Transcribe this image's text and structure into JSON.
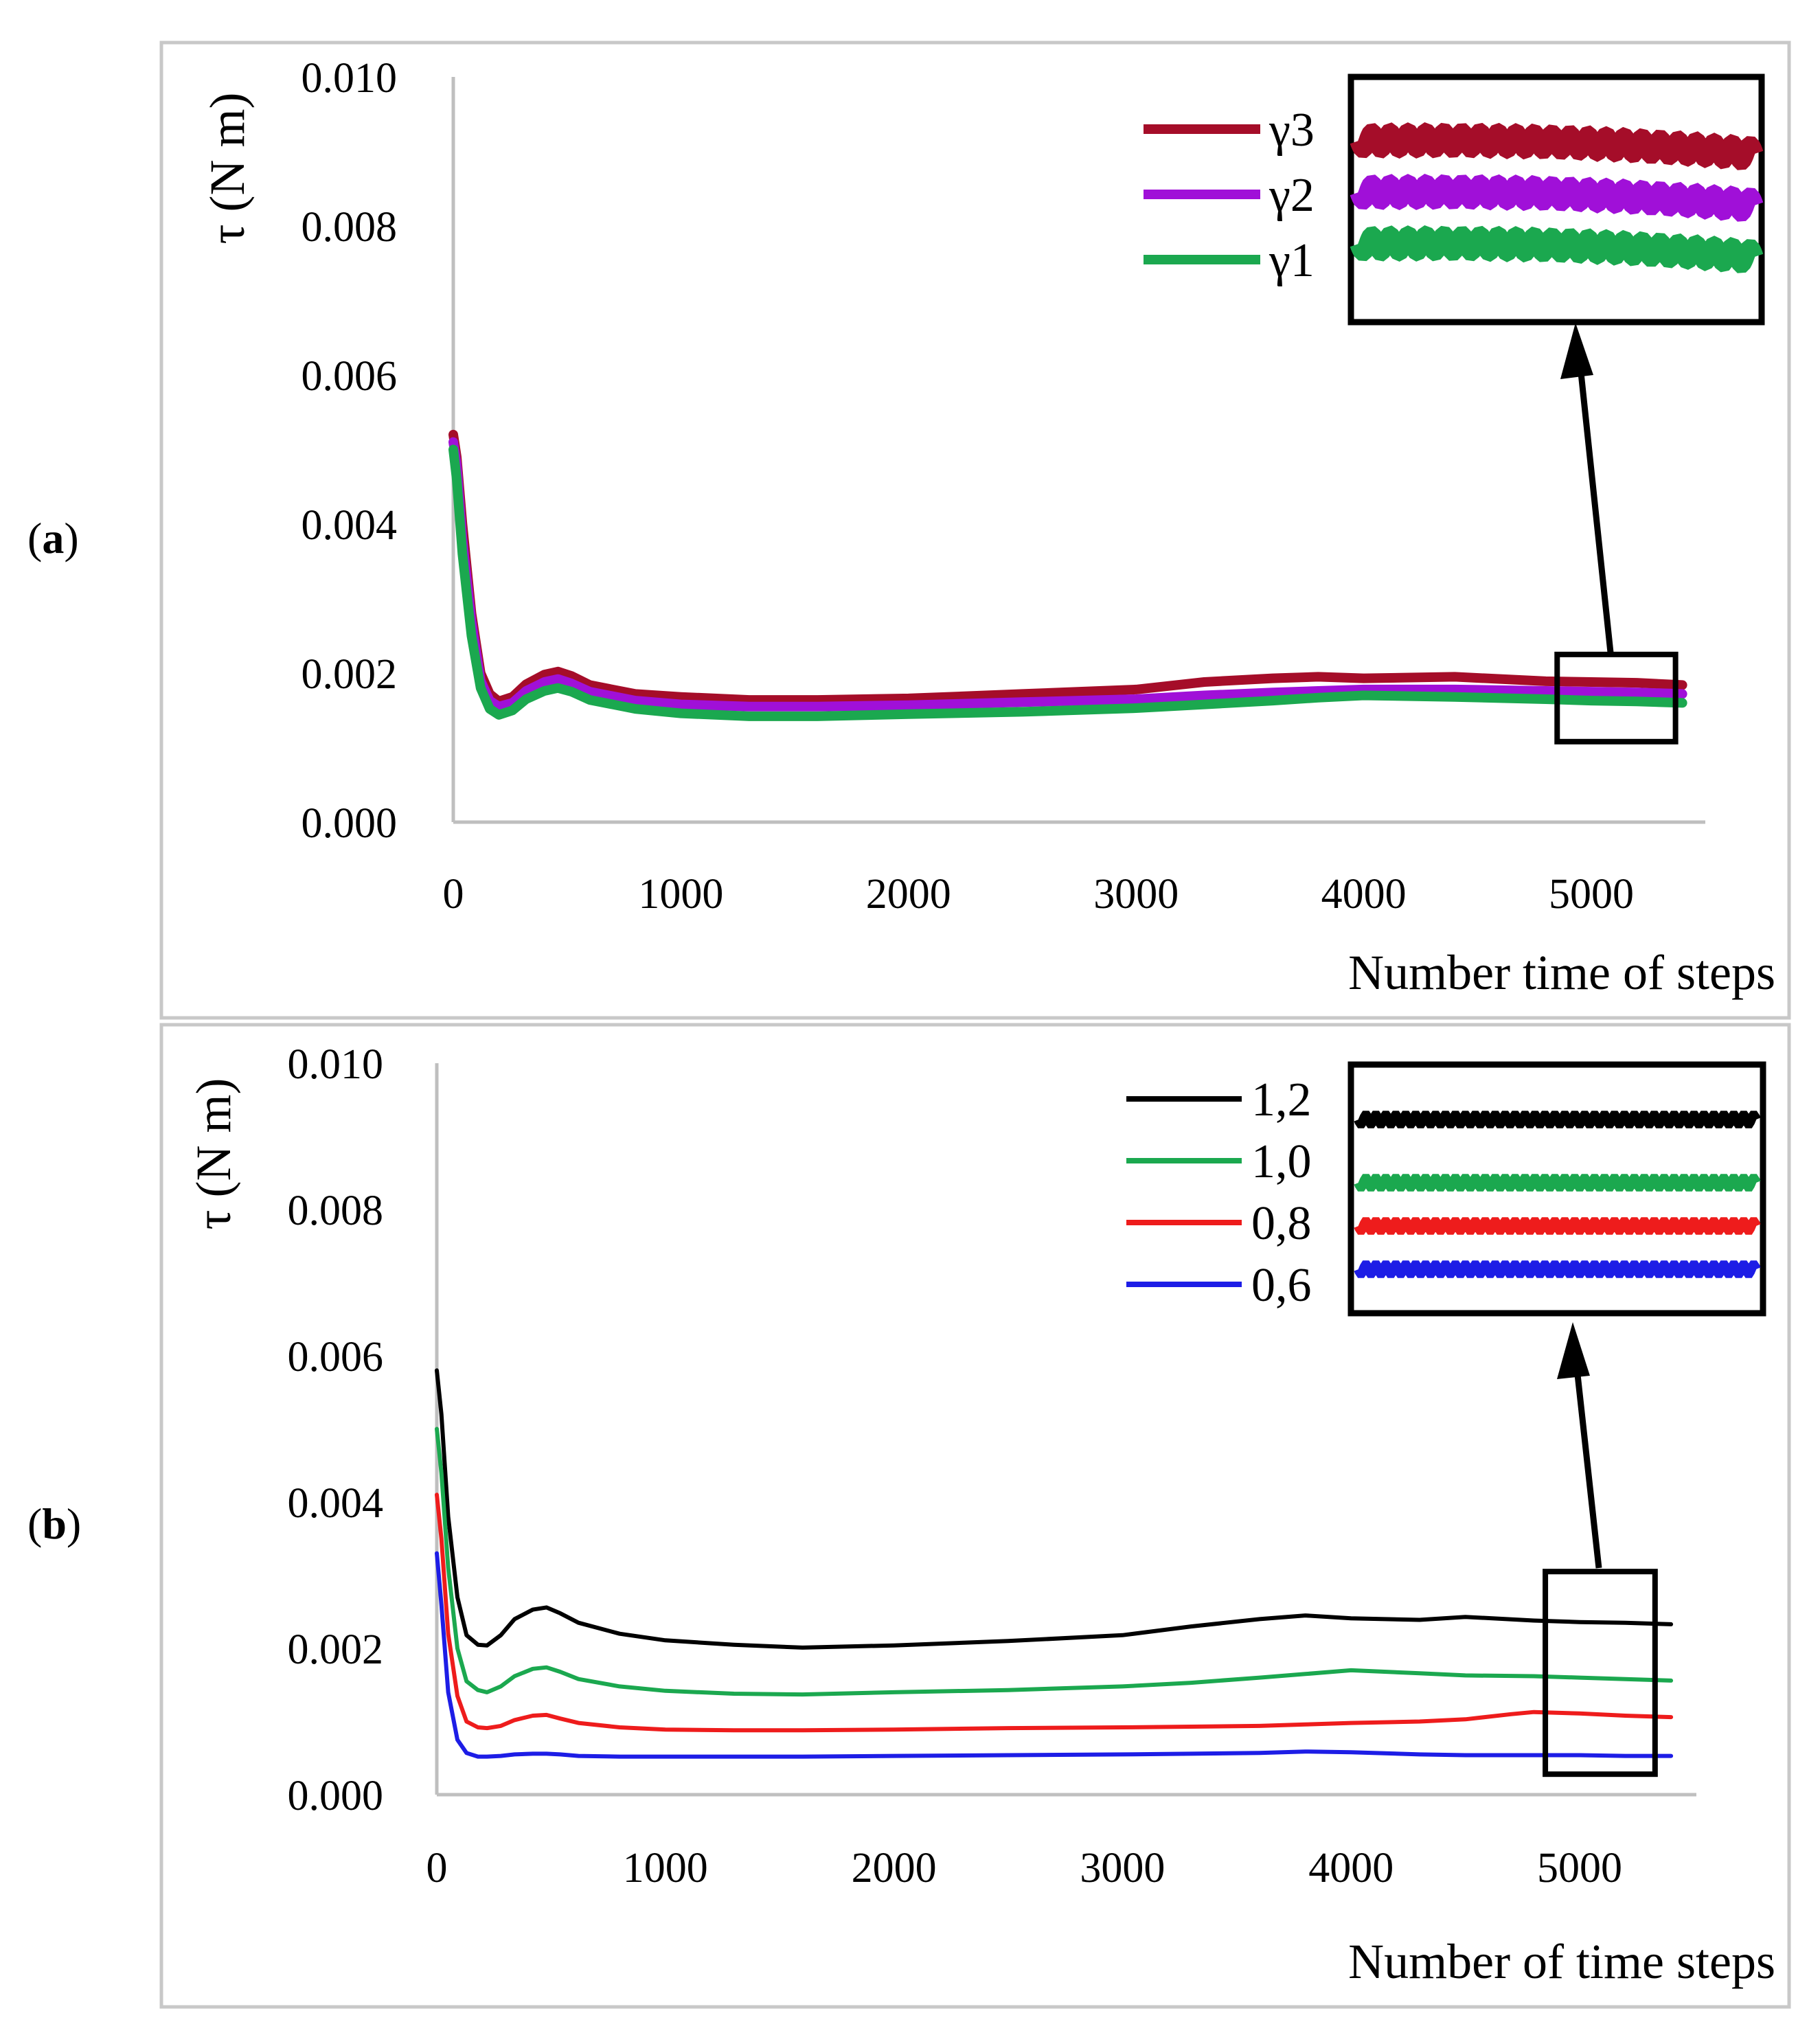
{
  "chart_data": [
    {
      "type": "line",
      "panel_label": "(a)",
      "panel_letter": "a",
      "xlabel": "Number time of steps",
      "ylabel": "τ (N m)",
      "xlim": [
        0,
        5500
      ],
      "ylim": [
        0,
        0.01
      ],
      "xticks": [
        "0",
        "1000",
        "2000",
        "3000",
        "4000",
        "5000"
      ],
      "yticks": [
        "0.000",
        "0.002",
        "0.004",
        "0.006",
        "0.008",
        "0.010"
      ],
      "grid": false,
      "legend_position": "top-right",
      "zoom_box": {
        "x": [
          4850,
          5370
        ],
        "y": [
          0.00108,
          0.00225
        ]
      },
      "series": [
        {
          "name": "γ3",
          "color": "#A50D29",
          "x": [
            0,
            15,
            40,
            80,
            120,
            160,
            200,
            260,
            320,
            400,
            460,
            520,
            600,
            800,
            1000,
            1300,
            1600,
            2000,
            2500,
            3000,
            3300,
            3600,
            3800,
            4000,
            4400,
            4800,
            5000,
            5200,
            5400
          ],
          "y": [
            0.0052,
            0.0049,
            0.004,
            0.0028,
            0.002,
            0.00172,
            0.00162,
            0.00168,
            0.00185,
            0.00198,
            0.00202,
            0.00196,
            0.00184,
            0.00172,
            0.00168,
            0.00164,
            0.00164,
            0.00166,
            0.00172,
            0.00178,
            0.00188,
            0.00193,
            0.00195,
            0.00193,
            0.00195,
            0.00189,
            0.00188,
            0.00187,
            0.00184
          ]
        },
        {
          "name": "γ2",
          "color": "#A010D8",
          "x": [
            0,
            15,
            40,
            80,
            120,
            160,
            200,
            260,
            320,
            400,
            460,
            520,
            600,
            800,
            1000,
            1300,
            1600,
            2000,
            2500,
            3000,
            3300,
            3600,
            3800,
            4000,
            4400,
            4800,
            5000,
            5200,
            5400
          ],
          "y": [
            0.0051,
            0.0048,
            0.0038,
            0.0027,
            0.0019,
            0.00163,
            0.00155,
            0.0016,
            0.00176,
            0.00188,
            0.00192,
            0.00186,
            0.00175,
            0.00163,
            0.00158,
            0.00155,
            0.00155,
            0.00157,
            0.00161,
            0.00165,
            0.0017,
            0.00174,
            0.00176,
            0.00178,
            0.00178,
            0.00176,
            0.00175,
            0.00174,
            0.00172
          ]
        },
        {
          "name": "γ1",
          "color": "#1BA84F",
          "x": [
            0,
            15,
            40,
            80,
            120,
            160,
            200,
            260,
            320,
            400,
            460,
            520,
            600,
            800,
            1000,
            1300,
            1600,
            2000,
            2500,
            3000,
            3300,
            3600,
            3800,
            4000,
            4400,
            4800,
            5000,
            5200,
            5400
          ],
          "y": [
            0.005,
            0.0046,
            0.0036,
            0.0025,
            0.0018,
            0.00152,
            0.00144,
            0.0015,
            0.00165,
            0.00176,
            0.0018,
            0.00175,
            0.00164,
            0.00152,
            0.00146,
            0.00142,
            0.00142,
            0.00145,
            0.00148,
            0.00153,
            0.00158,
            0.00163,
            0.00167,
            0.0017,
            0.00168,
            0.00165,
            0.00163,
            0.00162,
            0.0016
          ]
        }
      ]
    },
    {
      "type": "line",
      "panel_label": "(b)",
      "panel_letter": "b",
      "xlabel": "Number of time steps",
      "ylabel": "τ (N m)",
      "xlim": [
        0,
        5500
      ],
      "ylim": [
        0,
        0.01
      ],
      "xticks": [
        "0",
        "1000",
        "2000",
        "3000",
        "4000",
        "5000"
      ],
      "yticks": [
        "0.000",
        "0.002",
        "0.004",
        "0.006",
        "0.008",
        "0.010"
      ],
      "grid": false,
      "legend_position": "top-right",
      "zoom_box": {
        "x": [
          4850,
          5330
        ],
        "y": [
          0.00028,
          0.00305
        ]
      },
      "series": [
        {
          "name": "1,2",
          "color": "#000000",
          "x": [
            0,
            20,
            50,
            90,
            130,
            180,
            220,
            280,
            340,
            420,
            480,
            540,
            620,
            800,
            1000,
            1300,
            1600,
            2000,
            2500,
            3000,
            3300,
            3600,
            3800,
            4000,
            4300,
            4500,
            4800,
            5000,
            5200,
            5400
          ],
          "y": [
            0.0058,
            0.0052,
            0.0038,
            0.0027,
            0.00218,
            0.00205,
            0.00204,
            0.00218,
            0.0024,
            0.00253,
            0.00256,
            0.00248,
            0.00235,
            0.0022,
            0.00211,
            0.00205,
            0.00201,
            0.00204,
            0.0021,
            0.00218,
            0.0023,
            0.0024,
            0.00245,
            0.00241,
            0.00239,
            0.00243,
            0.00238,
            0.00236,
            0.00235,
            0.00233
          ]
        },
        {
          "name": "1,0",
          "color": "#1BA84F",
          "x": [
            0,
            20,
            50,
            90,
            130,
            180,
            220,
            280,
            340,
            420,
            480,
            540,
            620,
            800,
            1000,
            1300,
            1600,
            2000,
            2500,
            3000,
            3300,
            3600,
            3800,
            4000,
            4300,
            4500,
            4800,
            5000,
            5200,
            5400
          ],
          "y": [
            0.005,
            0.0044,
            0.0031,
            0.002,
            0.00155,
            0.00143,
            0.0014,
            0.00148,
            0.00162,
            0.00172,
            0.00174,
            0.00168,
            0.00158,
            0.00148,
            0.00142,
            0.00138,
            0.00137,
            0.0014,
            0.00143,
            0.00148,
            0.00153,
            0.0016,
            0.00165,
            0.0017,
            0.00166,
            0.00163,
            0.00162,
            0.0016,
            0.00158,
            0.00156
          ]
        },
        {
          "name": "0,8",
          "color": "#EE1C1C",
          "x": [
            0,
            20,
            50,
            90,
            130,
            180,
            220,
            280,
            340,
            420,
            480,
            540,
            620,
            800,
            1000,
            1300,
            1600,
            2000,
            2500,
            3000,
            3300,
            3600,
            3800,
            4000,
            4300,
            4500,
            4700,
            4800,
            5000,
            5200,
            5400
          ],
          "y": [
            0.0041,
            0.0035,
            0.0022,
            0.00135,
            0.001,
            0.00092,
            0.00091,
            0.00094,
            0.00102,
            0.00108,
            0.00109,
            0.00104,
            0.00098,
            0.00092,
            0.00089,
            0.00088,
            0.00088,
            0.00089,
            0.00091,
            0.00092,
            0.00093,
            0.00094,
            0.00096,
            0.00098,
            0.001,
            0.00103,
            0.0011,
            0.00113,
            0.00111,
            0.00108,
            0.00106
          ]
        },
        {
          "name": "0,6",
          "color": "#1D1DE6",
          "x": [
            0,
            20,
            50,
            90,
            130,
            180,
            220,
            280,
            340,
            420,
            480,
            540,
            620,
            800,
            1000,
            1300,
            1600,
            2000,
            2500,
            3000,
            3300,
            3600,
            3800,
            4000,
            4300,
            4500,
            4800,
            5000,
            5200,
            5400
          ],
          "y": [
            0.0033,
            0.0026,
            0.0014,
            0.00075,
            0.00057,
            0.00052,
            0.00052,
            0.00053,
            0.00055,
            0.00056,
            0.00056,
            0.00055,
            0.00053,
            0.00052,
            0.00052,
            0.00052,
            0.00052,
            0.00053,
            0.00054,
            0.00055,
            0.00056,
            0.00057,
            0.00059,
            0.00058,
            0.00055,
            0.00054,
            0.00054,
            0.00054,
            0.00053,
            0.00053
          ]
        }
      ]
    }
  ]
}
